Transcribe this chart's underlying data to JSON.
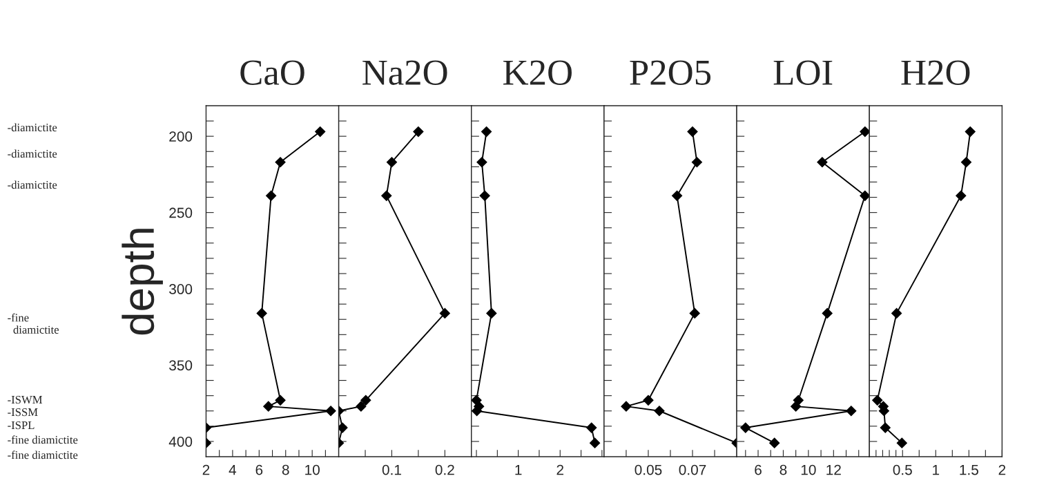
{
  "chart_data": [
    {
      "type": "line",
      "title": "CaO",
      "ylabel": "depth",
      "orientation": "horizontal",
      "marker": "diamond",
      "line_style": "solid",
      "color": "#000000",
      "x": [
        197,
        217,
        239,
        316,
        373,
        377,
        380,
        391,
        401
      ],
      "values": [
        10.6,
        7.6,
        6.9,
        6.2,
        7.6,
        6.7,
        11.4,
        2.0,
        2.0
      ],
      "xlim": [
        2,
        12
      ],
      "xticks": [
        2,
        {
          "value": 3,
          "label": null
        },
        4,
        {
          "value": 5,
          "label": null
        },
        6,
        {
          "value": 7,
          "label": null
        },
        8,
        {
          "value": 9,
          "label": null
        },
        10,
        {
          "value": 11,
          "label": null
        }
      ],
      "ylim": [
        410,
        180
      ],
      "yticks": [
        {
          "value": 190,
          "label": null
        },
        200,
        {
          "value": 210,
          "label": null
        },
        {
          "value": 220,
          "label": null
        },
        {
          "value": 230,
          "label": null
        },
        {
          "value": 240,
          "label": null
        },
        250,
        {
          "value": 260,
          "label": null
        },
        {
          "value": 270,
          "label": null
        },
        {
          "value": 280,
          "label": null
        },
        {
          "value": 290,
          "label": null
        },
        300,
        {
          "value": 310,
          "label": null
        },
        {
          "value": 320,
          "label": null
        },
        {
          "value": 330,
          "label": null
        },
        {
          "value": 340,
          "label": null
        },
        350,
        {
          "value": 360,
          "label": null
        },
        {
          "value": 370,
          "label": null
        },
        {
          "value": 380,
          "label": null
        },
        {
          "value": 390,
          "label": null
        },
        400
      ],
      "annotations": [
        "-diamictite",
        "-diamictite",
        "-diamictite",
        "-fine\n  diamictite",
        "-ISWM",
        "-ISSM",
        "-ISPL",
        "-fine diamictite",
        "-fine diamictite"
      ]
    },
    {
      "type": "line",
      "title": "Na2O",
      "orientation": "horizontal",
      "marker": "diamond",
      "line_style": "solid",
      "color": "#000000",
      "tick_labels": "x",
      "x": [
        197,
        217,
        239,
        316,
        373,
        377,
        380,
        391,
        401
      ],
      "values": [
        0.15,
        0.1,
        0.09,
        0.2,
        0.051,
        0.042,
        0.0,
        0.007,
        0.0
      ],
      "xlim": [
        0,
        0.25
      ],
      "xticks": [
        {
          "value": 0.05,
          "label": null
        },
        0.1,
        {
          "value": 0.15,
          "label": null
        },
        0.2
      ],
      "ylim": [
        410,
        180
      ],
      "yticks": [
        {
          "value": 190,
          "label": null
        },
        {
          "value": 200,
          "label": null
        },
        {
          "value": 210,
          "label": null
        },
        {
          "value": 220,
          "label": null
        },
        {
          "value": 230,
          "label": null
        },
        {
          "value": 240,
          "label": null
        },
        {
          "value": 250,
          "label": null
        },
        {
          "value": 260,
          "label": null
        },
        {
          "value": 270,
          "label": null
        },
        {
          "value": 280,
          "label": null
        },
        {
          "value": 290,
          "label": null
        },
        {
          "value": 300,
          "label": null
        },
        {
          "value": 310,
          "label": null
        },
        {
          "value": 320,
          "label": null
        },
        {
          "value": 330,
          "label": null
        },
        {
          "value": 340,
          "label": null
        },
        {
          "value": 350,
          "label": null
        },
        {
          "value": 360,
          "label": null
        },
        {
          "value": 370,
          "label": null
        },
        {
          "value": 380,
          "label": null
        },
        {
          "value": 390,
          "label": null
        },
        {
          "value": 400,
          "label": null
        }
      ]
    },
    {
      "type": "line",
      "title": "K2O",
      "orientation": "horizontal",
      "marker": "diamond",
      "line_style": "solid",
      "color": "#000000",
      "tick_labels": "x",
      "x": [
        197,
        217,
        239,
        316,
        373,
        377,
        380,
        391,
        401
      ],
      "values": [
        0.24,
        0.13,
        0.2,
        0.36,
        0.0,
        0.06,
        0.01,
        2.75,
        2.83
      ],
      "xlim": [
        -0.12,
        3.05
      ],
      "xticks": [
        {
          "value": 0,
          "label": null
        },
        {
          "value": 0.5,
          "label": null
        },
        1,
        {
          "value": 1.5,
          "label": null
        },
        2,
        {
          "value": 2.5,
          "label": null
        },
        {
          "value": 3,
          "label": null
        }
      ],
      "ylim": [
        410,
        180
      ],
      "yticks": [
        {
          "value": 190,
          "label": null
        },
        {
          "value": 200,
          "label": null
        },
        {
          "value": 210,
          "label": null
        },
        {
          "value": 220,
          "label": null
        },
        {
          "value": 230,
          "label": null
        },
        {
          "value": 240,
          "label": null
        },
        {
          "value": 250,
          "label": null
        },
        {
          "value": 260,
          "label": null
        },
        {
          "value": 270,
          "label": null
        },
        {
          "value": 280,
          "label": null
        },
        {
          "value": 290,
          "label": null
        },
        {
          "value": 300,
          "label": null
        },
        {
          "value": 310,
          "label": null
        },
        {
          "value": 320,
          "label": null
        },
        {
          "value": 330,
          "label": null
        },
        {
          "value": 340,
          "label": null
        },
        {
          "value": 350,
          "label": null
        },
        {
          "value": 360,
          "label": null
        },
        {
          "value": 370,
          "label": null
        },
        {
          "value": 380,
          "label": null
        },
        {
          "value": 390,
          "label": null
        },
        {
          "value": 400,
          "label": null
        }
      ]
    },
    {
      "type": "line",
      "title": "P2O5",
      "orientation": "horizontal",
      "marker": "diamond",
      "line_style": "solid",
      "color": "#000000",
      "tick_labels": "x",
      "x": [
        197,
        217,
        239,
        316,
        373,
        377,
        380,
        401
      ],
      "values": [
        0.07,
        0.072,
        0.063,
        0.071,
        0.05,
        0.04,
        0.055,
        0.09
      ],
      "xlim": [
        0.03,
        0.09
      ],
      "xticks": [
        {
          "value": 0.04,
          "label": null
        },
        0.05,
        {
          "value": 0.06,
          "label": null
        },
        0.07,
        {
          "value": 0.08,
          "label": null
        }
      ],
      "ylim": [
        410,
        180
      ],
      "yticks": [
        {
          "value": 190,
          "label": null
        },
        {
          "value": 200,
          "label": null
        },
        {
          "value": 210,
          "label": null
        },
        {
          "value": 220,
          "label": null
        },
        {
          "value": 230,
          "label": null
        },
        {
          "value": 240,
          "label": null
        },
        {
          "value": 250,
          "label": null
        },
        {
          "value": 260,
          "label": null
        },
        {
          "value": 270,
          "label": null
        },
        {
          "value": 280,
          "label": null
        },
        {
          "value": 290,
          "label": null
        },
        {
          "value": 300,
          "label": null
        },
        {
          "value": 310,
          "label": null
        },
        {
          "value": 320,
          "label": null
        },
        {
          "value": 330,
          "label": null
        },
        {
          "value": 340,
          "label": null
        },
        {
          "value": 350,
          "label": null
        },
        {
          "value": 360,
          "label": null
        },
        {
          "value": 370,
          "label": null
        },
        {
          "value": 380,
          "label": null
        },
        {
          "value": 390,
          "label": null
        },
        {
          "value": 400,
          "label": null
        }
      ]
    },
    {
      "type": "line",
      "title": "LOI",
      "orientation": "horizontal",
      "marker": "diamond",
      "line_style": "solid",
      "color": "#000000",
      "tick_labels": "x",
      "x": [
        197,
        217,
        239,
        316,
        373,
        377,
        380,
        391,
        401
      ],
      "values": [
        14.5,
        11.1,
        14.5,
        11.5,
        9.2,
        9.0,
        13.4,
        5.0,
        7.3
      ],
      "xlim": [
        4.3,
        14.85
      ],
      "xticks": [
        {
          "value": 5,
          "label": null
        },
        6,
        {
          "value": 7,
          "label": null
        },
        8,
        {
          "value": 9,
          "label": null
        },
        10,
        {
          "value": 11,
          "label": null
        },
        12,
        {
          "value": 13,
          "label": null
        },
        {
          "value": 14,
          "label": null
        }
      ],
      "ylim": [
        410,
        180
      ],
      "yticks": [
        {
          "value": 190,
          "label": null
        },
        {
          "value": 200,
          "label": null
        },
        {
          "value": 210,
          "label": null
        },
        {
          "value": 220,
          "label": null
        },
        {
          "value": 230,
          "label": null
        },
        {
          "value": 240,
          "label": null
        },
        {
          "value": 250,
          "label": null
        },
        {
          "value": 260,
          "label": null
        },
        {
          "value": 270,
          "label": null
        },
        {
          "value": 280,
          "label": null
        },
        {
          "value": 290,
          "label": null
        },
        {
          "value": 300,
          "label": null
        },
        {
          "value": 310,
          "label": null
        },
        {
          "value": 320,
          "label": null
        },
        {
          "value": 330,
          "label": null
        },
        {
          "value": 340,
          "label": null
        },
        {
          "value": 350,
          "label": null
        },
        {
          "value": 360,
          "label": null
        },
        {
          "value": 370,
          "label": null
        },
        {
          "value": 380,
          "label": null
        },
        {
          "value": 390,
          "label": null
        },
        {
          "value": 400,
          "label": null
        }
      ]
    },
    {
      "type": "line",
      "title": "H2O",
      "orientation": "horizontal",
      "marker": "diamond",
      "line_style": "solid",
      "color": "#000000",
      "tick_labels": "x",
      "x": [
        197,
        217,
        239,
        316,
        373,
        377,
        380,
        391,
        401
      ],
      "values": [
        1.52,
        1.46,
        1.38,
        0.41,
        0.12,
        0.21,
        0.22,
        0.24,
        0.49
      ],
      "xlim": [
        0,
        2
      ],
      "xticks": [
        {
          "value": 0.1,
          "label": null
        },
        {
          "value": 0.2,
          "label": null
        },
        {
          "value": 0.3,
          "label": null
        },
        {
          "value": 0.4,
          "label": null
        },
        0.5,
        {
          "value": 0.75,
          "label": null
        },
        1,
        {
          "value": 1.25,
          "label": null
        },
        1.5,
        {
          "value": 1.75,
          "label": null
        },
        2
      ],
      "ylim": [
        410,
        180
      ],
      "yticks": [
        {
          "value": 190,
          "label": null
        },
        {
          "value": 200,
          "label": null
        },
        {
          "value": 210,
          "label": null
        },
        {
          "value": 220,
          "label": null
        },
        {
          "value": 230,
          "label": null
        },
        {
          "value": 240,
          "label": null
        },
        {
          "value": 250,
          "label": null
        },
        {
          "value": 260,
          "label": null
        },
        {
          "value": 270,
          "label": null
        },
        {
          "value": 280,
          "label": null
        },
        {
          "value": 290,
          "label": null
        },
        {
          "value": 300,
          "label": null
        },
        {
          "value": 310,
          "label": null
        },
        {
          "value": 320,
          "label": null
        },
        {
          "value": 330,
          "label": null
        },
        {
          "value": 340,
          "label": null
        },
        {
          "value": 350,
          "label": null
        },
        {
          "value": 360,
          "label": null
        },
        {
          "value": 370,
          "label": null
        },
        {
          "value": 380,
          "label": null
        },
        {
          "value": 390,
          "label": null
        },
        {
          "value": 400,
          "label": null
        }
      ]
    }
  ]
}
